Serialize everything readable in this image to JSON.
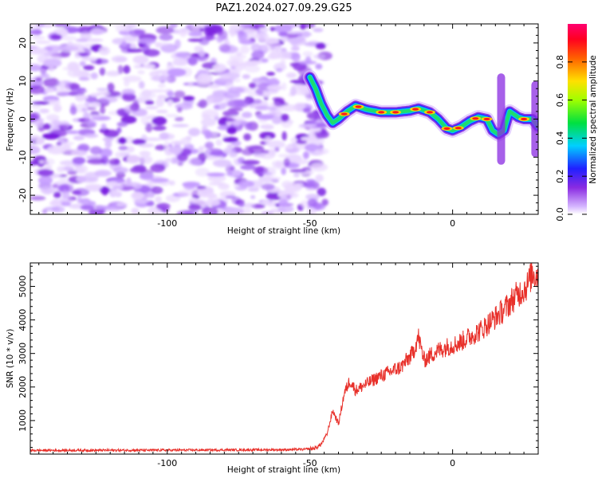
{
  "title": "PAZ1.2024.027.09.29.G25",
  "chart_data": [
    {
      "type": "heatmap",
      "xlabel": "Height of straight line (km)",
      "ylabel": "Frequency (Hz)",
      "xlim": [
        -148,
        30
      ],
      "ylim": [
        -25,
        25
      ],
      "xticks": [
        -100,
        -50,
        0
      ],
      "yticks": [
        -20,
        -10,
        0,
        10,
        20
      ],
      "colorbar": {
        "label": "Normalized spectral amplitude",
        "range": [
          0,
          1
        ],
        "ticks": [
          "0.0",
          "0.2",
          "0.4",
          "0.6",
          "0.8"
        ]
      },
      "ridge": {
        "x": [
          -50,
          -48,
          -46,
          -44,
          -42,
          -40,
          -37,
          -34,
          -30,
          -25,
          -20,
          -15,
          -12,
          -8,
          -5,
          -2,
          0,
          3,
          6,
          9,
          12,
          14,
          16,
          18,
          20,
          23,
          25,
          28,
          30
        ],
        "y": [
          11,
          8,
          4,
          1,
          -1,
          0,
          2,
          3.5,
          2.5,
          1.8,
          1.8,
          2.2,
          2.8,
          1.8,
          0,
          -2.5,
          -3,
          -2,
          -0.5,
          0.5,
          0,
          -3,
          -4,
          -3,
          2,
          0.5,
          0,
          0,
          -2
        ]
      },
      "noise_region_x": [
        -148,
        -48
      ]
    },
    {
      "type": "line",
      "xlabel": "Height of straight line (km)",
      "ylabel": "SNR (10 * v/v)",
      "xlim": [
        -148,
        30
      ],
      "ylim": [
        0,
        5700
      ],
      "xticks": [
        -100,
        -50,
        0
      ],
      "yticks": [
        1000,
        2000,
        3000,
        4000,
        5000
      ],
      "series": [
        {
          "color": "#e8302a",
          "x": [
            -148,
            -120,
            -90,
            -60,
            -52,
            -48,
            -46,
            -44,
            -42,
            -40,
            -38,
            -36,
            -34,
            -30,
            -26,
            -22,
            -18,
            -14,
            -12,
            -10,
            -6,
            -2,
            2,
            6,
            10,
            14,
            18,
            22,
            26,
            28,
            30
          ],
          "y": [
            110,
            115,
            120,
            130,
            140,
            180,
            300,
            600,
            1300,
            900,
            1800,
            2200,
            1900,
            2100,
            2300,
            2450,
            2600,
            3000,
            3500,
            2800,
            3050,
            3200,
            3300,
            3500,
            3700,
            4000,
            4300,
            4700,
            5000,
            5400,
            5300
          ]
        }
      ]
    }
  ]
}
